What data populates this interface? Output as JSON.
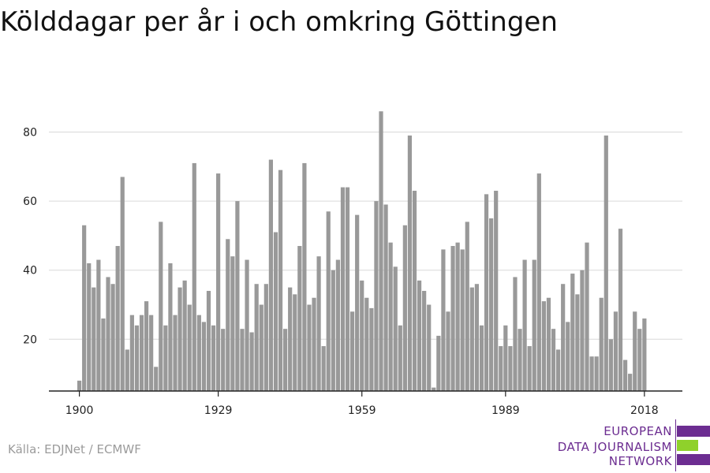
{
  "title": "Kölddagar per år i och omkring Göttingen",
  "source": "Källa: EDJNet / ECMWF",
  "logo": {
    "lines": [
      "EUROPEAN",
      "DATA JOURNALISM",
      "NETWORK"
    ],
    "colors": {
      "purple": "#6c2d91",
      "green": "#8fd12b"
    }
  },
  "chart_data": {
    "type": "bar",
    "title": "Kölddagar per år i och omkring Göttingen",
    "xlabel": "",
    "ylabel": "",
    "bar_color": "#999999",
    "grid": true,
    "x_start": 1900,
    "years": [
      1900,
      1901,
      1902,
      1903,
      1904,
      1905,
      1906,
      1907,
      1908,
      1909,
      1910,
      1911,
      1912,
      1913,
      1914,
      1915,
      1916,
      1917,
      1918,
      1919,
      1920,
      1921,
      1922,
      1923,
      1924,
      1925,
      1926,
      1927,
      1928,
      1929,
      1930,
      1931,
      1932,
      1933,
      1934,
      1935,
      1936,
      1937,
      1938,
      1939,
      1940,
      1941,
      1942,
      1943,
      1944,
      1945,
      1946,
      1947,
      1948,
      1949,
      1950,
      1951,
      1952,
      1953,
      1954,
      1955,
      1956,
      1957,
      1958,
      1959,
      1960,
      1961,
      1962,
      1963,
      1964,
      1965,
      1966,
      1967,
      1968,
      1969,
      1970,
      1971,
      1972,
      1973,
      1974,
      1975,
      1976,
      1977,
      1978,
      1979,
      1980,
      1981,
      1982,
      1983,
      1984,
      1985,
      1986,
      1987,
      1988,
      1989,
      1990,
      1991,
      1992,
      1993,
      1994,
      1995,
      1996,
      1997,
      1998,
      1999,
      2000,
      2001,
      2002,
      2003,
      2004,
      2005,
      2006,
      2007,
      2008,
      2009,
      2010,
      2011,
      2012,
      2013,
      2014,
      2015,
      2016,
      2017,
      2018
    ],
    "values": [
      8,
      53,
      42,
      35,
      43,
      26,
      38,
      36,
      47,
      67,
      17,
      27,
      24,
      27,
      31,
      27,
      12,
      54,
      24,
      42,
      27,
      35,
      37,
      30,
      71,
      27,
      25,
      34,
      24,
      68,
      23,
      49,
      44,
      60,
      23,
      43,
      22,
      36,
      30,
      36,
      72,
      51,
      69,
      23,
      35,
      33,
      47,
      71,
      30,
      32,
      44,
      18,
      57,
      40,
      43,
      64,
      64,
      28,
      56,
      37,
      32,
      29,
      60,
      86,
      59,
      48,
      41,
      24,
      53,
      79,
      63,
      37,
      34,
      30,
      6,
      21,
      46,
      28,
      47,
      48,
      46,
      54,
      35,
      36,
      24,
      62,
      55,
      63,
      18,
      24,
      18,
      38,
      23,
      43,
      18,
      43,
      68,
      31,
      32,
      23,
      17,
      36,
      25,
      39,
      33,
      40,
      48,
      15,
      15,
      32,
      79,
      20,
      28,
      52,
      14,
      10,
      28,
      23,
      26
    ],
    "x_ticks": [
      1900,
      1929,
      1959,
      1989,
      2018
    ],
    "y_ticks": [
      20,
      40,
      60,
      80
    ],
    "ylim": [
      5,
      90
    ]
  }
}
